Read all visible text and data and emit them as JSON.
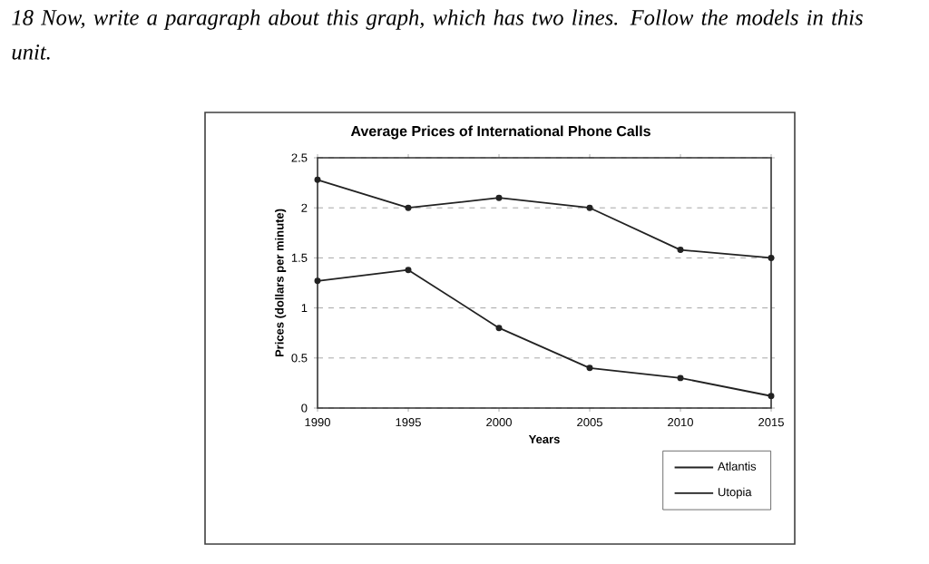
{
  "chart_data": {
    "type": "line",
    "title": "Average Prices of International Phone Calls",
    "annotations": [
      "18 Now, write a paragraph about this graph, which has two lines. Follow the models in this unit."
    ],
    "xlabel": "Years",
    "ylabel": "Prices (dollars per minute)",
    "x": [
      1990,
      1995,
      2000,
      2005,
      2010,
      2015
    ],
    "series": [
      {
        "name": "Atlantis",
        "color": "#222222",
        "values": [
          2.28,
          2.0,
          2.1,
          2.0,
          1.58,
          1.5
        ]
      },
      {
        "name": "Utopia",
        "color": "#222222",
        "values": [
          1.27,
          1.38,
          0.8,
          0.4,
          0.3,
          0.12
        ]
      }
    ],
    "xlim": [
      1990,
      2015
    ],
    "xticks": [
      1990,
      1995,
      2000,
      2005,
      2010,
      2015
    ],
    "ylim": [
      0,
      2.5
    ],
    "yticks": [
      0,
      0.5,
      1,
      1.5,
      2,
      2.5
    ],
    "grid": "y",
    "legend": "bottom right",
    "marker": "circle",
    "line_style": "solid"
  }
}
